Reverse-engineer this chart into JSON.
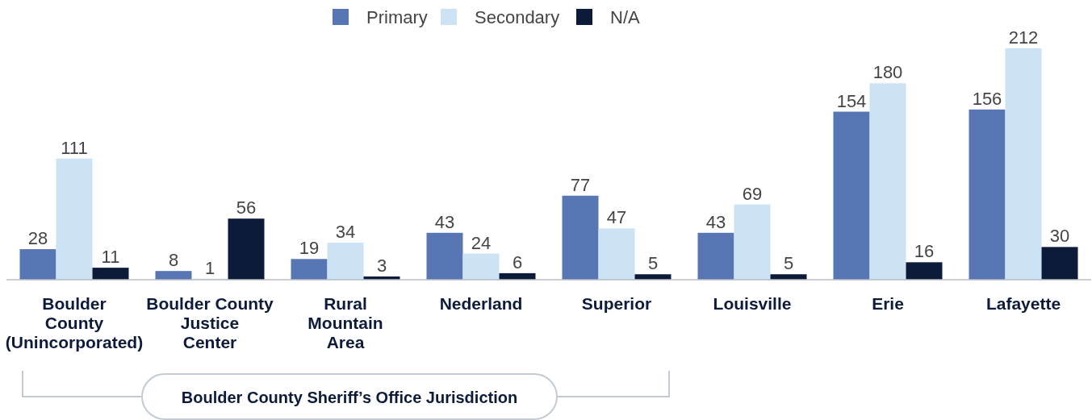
{
  "chart_data": {
    "type": "bar",
    "categories": [
      "Boulder\nCounty\n(Unincorporated)",
      "Boulder County\nJustice\nCenter",
      "Rural\nMountain\nArea",
      "Nederland",
      "Superior",
      "Louisville",
      "Erie",
      "Lafayette"
    ],
    "series": [
      {
        "name": "Primary",
        "color": "#5876b4",
        "values": [
          28,
          8,
          19,
          43,
          77,
          43,
          154,
          156
        ]
      },
      {
        "name": "Secondary",
        "color": "#cce3f5",
        "values": [
          111,
          1,
          34,
          24,
          47,
          69,
          180,
          212
        ]
      },
      {
        "name": "N/A",
        "color": "#0c1b3a",
        "values": [
          11,
          56,
          3,
          6,
          5,
          5,
          16,
          30
        ]
      }
    ],
    "data_labels": true,
    "legend": "top",
    "annotations": [
      "Boulder County Sheriff’s Office Jurisdiction"
    ]
  }
}
